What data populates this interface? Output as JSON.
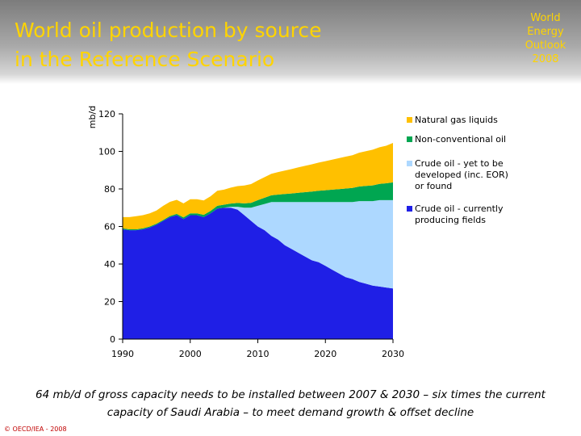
{
  "header": {
    "title": "World oil production by source\nin the Reference Scenario",
    "badge": "World\nEnergy\nOutlook\n2008"
  },
  "caption": {
    "line1": "64 mb/d of gross capacity needs to be installed between 2007 & 2030 – six times the current",
    "line2": "capacity of Saudi Arabia – to meet demand growth & offset decline"
  },
  "copyright": "© OECD/IEA - 2008",
  "colors": {
    "natural_gas_liquids": "#ffc000",
    "non_conventional_oil": "#00a651",
    "yet_to_be_developed": "#add8ff",
    "currently_producing": "#1f1fe6"
  },
  "chart_data": {
    "type": "area",
    "stacked": true,
    "ylabel": "mb/d",
    "xlabel": "",
    "xlim": [
      1990,
      2030
    ],
    "ylim": [
      0,
      120
    ],
    "xticks": [
      1990,
      2000,
      2010,
      2020,
      2030
    ],
    "yticks": [
      0,
      20,
      40,
      60,
      80,
      100,
      120
    ],
    "grid": false,
    "legend_position": "right",
    "x": [
      1990,
      1991,
      1992,
      1993,
      1994,
      1995,
      1996,
      1997,
      1998,
      1999,
      2000,
      2001,
      2002,
      2003,
      2004,
      2005,
      2006,
      2007,
      2008,
      2009,
      2010,
      2011,
      2012,
      2013,
      2014,
      2015,
      2016,
      2017,
      2018,
      2019,
      2020,
      2021,
      2022,
      2023,
      2024,
      2025,
      2026,
      2027,
      2028,
      2029,
      2030
    ],
    "series": [
      {
        "name": "Crude oil - currently producing fields",
        "values": [
          58.5,
          58,
          58,
          58.5,
          59.5,
          61,
          63,
          65,
          66,
          64,
          66,
          66,
          65,
          67,
          69.5,
          70,
          70,
          69,
          66,
          63,
          60,
          58,
          55,
          53,
          50,
          48,
          46,
          44,
          42,
          41,
          39,
          37,
          35,
          33,
          32,
          30.5,
          29.5,
          28.5,
          28,
          27.5,
          27
        ]
      },
      {
        "name": "Crude oil - yet to be developed (inc. EOR) or found",
        "values": [
          0,
          0,
          0,
          0,
          0,
          0,
          0,
          0,
          0,
          0,
          0,
          0,
          0,
          0,
          0,
          0,
          0.5,
          1.5,
          4,
          7,
          11,
          14,
          18,
          20,
          23,
          25,
          27,
          29,
          31,
          32,
          34,
          36,
          38,
          40,
          41,
          43,
          44,
          45,
          46,
          46.5,
          47
        ]
      },
      {
        "name": "Non-conventional oil",
        "values": [
          0.5,
          0.5,
          0.5,
          0.5,
          0.5,
          0.5,
          0.5,
          0.6,
          0.7,
          0.8,
          1,
          1,
          1.2,
          1.3,
          1.5,
          1.6,
          1.7,
          2,
          2.3,
          2.6,
          3,
          3.3,
          3.6,
          4,
          4.3,
          4.6,
          5,
          5.3,
          5.6,
          6,
          6.3,
          6.6,
          6.9,
          7.2,
          7.5,
          7.8,
          8.1,
          8.4,
          8.7,
          9,
          9.5
        ]
      },
      {
        "name": "Natural gas liquids",
        "values": [
          6,
          6.5,
          7,
          7,
          7,
          7,
          7.5,
          7.5,
          7.5,
          7.5,
          7.5,
          7.5,
          7.7,
          7.8,
          8,
          8,
          8.5,
          9,
          9.5,
          10,
          10.5,
          11,
          11.5,
          12,
          12.5,
          13,
          13.5,
          14,
          14.5,
          15,
          15.5,
          16,
          16.5,
          17,
          17.5,
          18,
          18.5,
          19,
          19.5,
          20,
          21
        ]
      }
    ],
    "legend": [
      {
        "label": "Natural gas liquids",
        "color_key": "natural_gas_liquids"
      },
      {
        "label": "Non-conventional oil",
        "color_key": "non_conventional_oil"
      },
      {
        "label": "Crude oil - yet to be\ndeveloped (inc. EOR)\nor found",
        "color_key": "yet_to_be_developed"
      },
      {
        "label": "Crude oil - currently\nproducing fields",
        "color_key": "currently_producing"
      }
    ]
  }
}
